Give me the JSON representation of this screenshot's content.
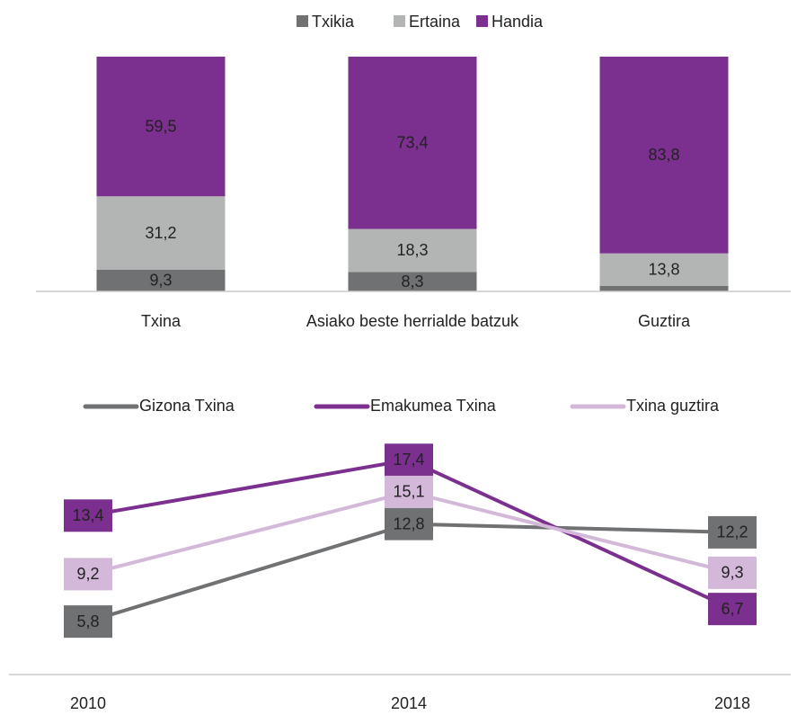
{
  "chart_data": [
    {
      "type": "stacked_bar",
      "categories": [
        "Txina",
        "Asiako beste herrialde batzuk",
        "Guztira"
      ],
      "series": [
        {
          "name": "Txikia",
          "color": "#707173",
          "values": [
            9.3,
            8.3,
            2.4
          ],
          "value_labels": [
            "9,3",
            "8,3",
            null
          ]
        },
        {
          "name": "Ertaina",
          "color": "#b3b5b5",
          "values": [
            31.2,
            18.3,
            13.8
          ],
          "value_labels": [
            "31,2",
            "18,3",
            "13,8"
          ]
        },
        {
          "name": "Handia",
          "color": "#7b2f8e",
          "values": [
            59.5,
            73.4,
            83.8
          ],
          "value_labels": [
            "59,5",
            "73,4",
            "83,8"
          ]
        }
      ],
      "ylim": [
        0,
        100
      ]
    },
    {
      "type": "line",
      "categories": [
        "2010",
        "2014",
        "2018"
      ],
      "series": [
        {
          "name": "Gizona Txina",
          "color": "#707173",
          "values": [
            5.8,
            12.8,
            12.2
          ],
          "value_labels": [
            "5,8",
            "12,8",
            "12,2"
          ]
        },
        {
          "name": "Emakumea Txina",
          "color": "#7b2f8e",
          "values": [
            13.4,
            17.4,
            6.7
          ],
          "value_labels": [
            "13,4",
            "17,4",
            "6,7"
          ]
        },
        {
          "name": "Txina guztira",
          "color": "#d3b8d9",
          "values": [
            9.2,
            15.1,
            9.3
          ],
          "value_labels": [
            "9,2",
            "15,1",
            "9,3"
          ]
        }
      ],
      "ylim": [
        2,
        18
      ]
    }
  ]
}
